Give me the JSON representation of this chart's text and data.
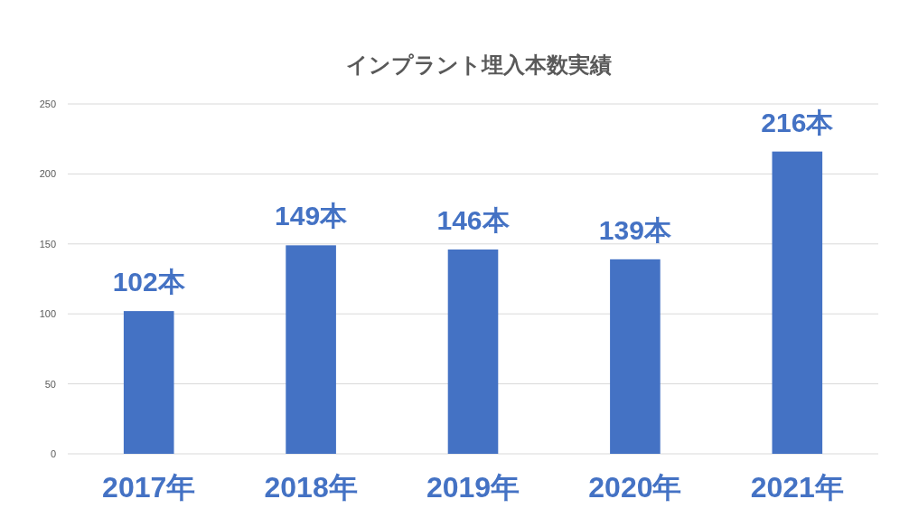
{
  "chart_data": {
    "type": "bar",
    "title": "インプラント埋入本数実績",
    "categories": [
      "2017年",
      "2018年",
      "2019年",
      "2020年",
      "2021年"
    ],
    "values": [
      102,
      149,
      146,
      139,
      216
    ],
    "value_labels": [
      "102本",
      "149本",
      "146本",
      "139本",
      "216本"
    ],
    "color": "#4472c4",
    "ylim": [
      0,
      250
    ],
    "yticks": [
      0,
      50,
      100,
      150,
      200,
      250
    ],
    "grid": "y"
  }
}
